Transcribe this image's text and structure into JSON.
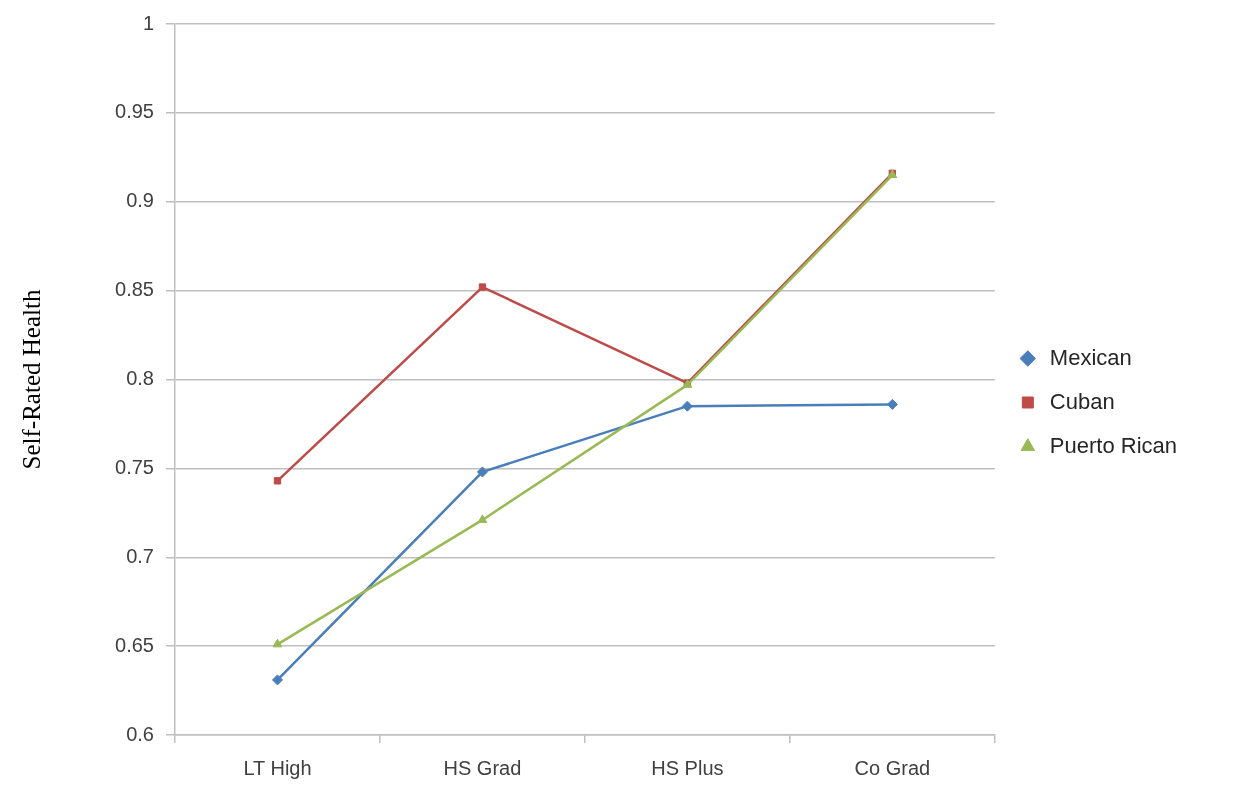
{
  "chart_data": {
    "type": "line",
    "ylabel": "Self-Rated Health",
    "categories": [
      "LT High",
      "HS Grad",
      "HS Plus",
      "Co Grad"
    ],
    "series": [
      {
        "name": "Mexican",
        "color": "#4a7ebb",
        "marker": "diamond",
        "values": [
          0.631,
          0.748,
          0.785,
          0.786
        ]
      },
      {
        "name": "Cuban",
        "color": "#be4b48",
        "marker": "square",
        "values": [
          0.743,
          0.852,
          0.798,
          0.916
        ]
      },
      {
        "name": "Puerto Rican",
        "color": "#98b954",
        "marker": "triangle",
        "values": [
          0.651,
          0.721,
          0.797,
          0.915
        ]
      }
    ],
    "ylim": [
      0.6,
      1
    ],
    "yticks": [
      0.6,
      0.65,
      0.7,
      0.75,
      0.8,
      0.85,
      0.9,
      0.95,
      1
    ],
    "grid": "y",
    "legend": "right",
    "line_style": "solid"
  }
}
